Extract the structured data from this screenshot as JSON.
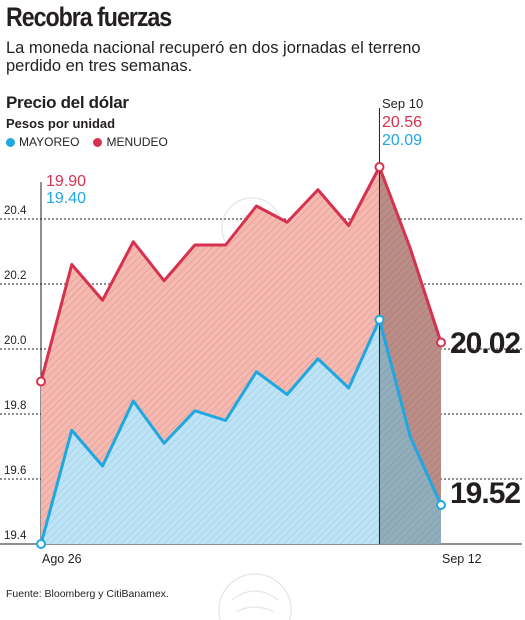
{
  "header": {
    "title": "Recobra fuerzas",
    "subtitle": "La moneda nacional recuperó en dos jornadas el terreno perdido en tres semanas."
  },
  "colors": {
    "mayoreo": "#1ea7e1",
    "menudeo": "#d6324f",
    "mayoreo_fill": "#bfe3f5",
    "menudeo_fill": "#f4b9b0",
    "grid": "#231f20"
  },
  "legend": {
    "mayoreo": "MAYOREO",
    "menudeo": "MENUDEO"
  },
  "callouts": {
    "start_menudeo": "19.90",
    "start_mayoreo": "19.40",
    "peak_date": "Sep 10",
    "peak_menudeo": "20.56",
    "peak_mayoreo": "20.09",
    "end_menudeo": "20.02",
    "end_mayoreo": "19.52"
  },
  "source": "Fuente: Bloomberg y CitiBanamex.",
  "chart_data": {
    "type": "area",
    "title": "Precio del dólar",
    "ylabel": "Pesos por unidad",
    "ylim": [
      19.4,
      20.6
    ],
    "yticks": [
      "19.4",
      "19.6",
      "19.8",
      "20.0",
      "20.2",
      "20.4"
    ],
    "xticklabels": {
      "first": "Ago 26",
      "last": "Sep 12"
    },
    "grid": true,
    "points_count": 14,
    "highlight_index": 12,
    "series": [
      {
        "name": "MENUDEO",
        "values": [
          19.9,
          20.26,
          20.15,
          20.33,
          20.21,
          20.32,
          20.32,
          20.44,
          20.39,
          20.49,
          20.38,
          20.56,
          20.31,
          20.02
        ]
      },
      {
        "name": "MAYOREO",
        "values": [
          19.4,
          19.75,
          19.64,
          19.84,
          19.71,
          19.81,
          19.78,
          19.93,
          19.86,
          19.97,
          19.88,
          20.09,
          19.73,
          19.52
        ]
      }
    ]
  }
}
